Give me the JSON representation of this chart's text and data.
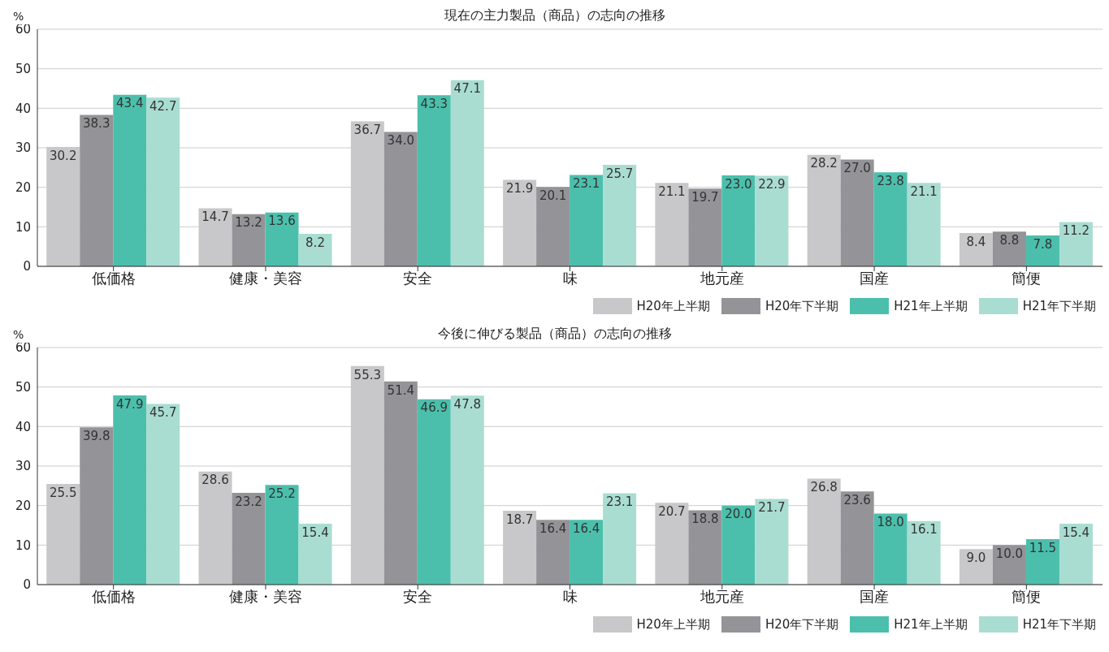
{
  "chart_data": [
    {
      "type": "bar",
      "title": "現在の主力製品（商品）の志向の推移",
      "ylabel": "%",
      "categories": [
        "低価格",
        "健康・美容",
        "安全",
        "味",
        "地元産",
        "国産",
        "簡便"
      ],
      "series": [
        {
          "name": "H20年上半期",
          "color": "#c8c8ca",
          "values": [
            30.2,
            14.7,
            36.7,
            21.9,
            21.1,
            28.2,
            8.4
          ],
          "value_labels": [
            "30.2",
            "14.7",
            "36.7",
            "21.9",
            "21.1",
            "28.2",
            "8.4"
          ]
        },
        {
          "name": "H20年下半期",
          "color": "#949498",
          "values": [
            38.3,
            13.2,
            34.0,
            20.1,
            19.7,
            27.0,
            8.8
          ],
          "value_labels": [
            "38.3",
            "13.2",
            "34.0",
            "20.1",
            "19.7",
            "27.0",
            "8.8"
          ]
        },
        {
          "name": "H21年上半期",
          "color": "#4bbfac",
          "values": [
            43.4,
            13.6,
            43.3,
            23.1,
            23.0,
            23.8,
            7.8
          ],
          "value_labels": [
            "43.4",
            "13.6",
            "43.3",
            "23.1",
            "23.0",
            "23.8",
            "7.8"
          ]
        },
        {
          "name": "H21年下半期",
          "color": "#a9ddd2",
          "values": [
            42.7,
            8.2,
            47.1,
            25.7,
            22.9,
            21.1,
            11.2
          ],
          "value_labels": [
            "42.7",
            "8.2",
            "47.1",
            "25.7",
            "22.9",
            "21.1",
            "11.2"
          ]
        }
      ],
      "ylim": [
        0,
        60
      ],
      "yticks": [
        0,
        10,
        20,
        30,
        40,
        50,
        60
      ],
      "grid": "y",
      "legend": "bottom right"
    },
    {
      "type": "bar",
      "title": "今後に伸びる製品（商品）の志向の推移",
      "ylabel": "%",
      "categories": [
        "低価格",
        "健康・美容",
        "安全",
        "味",
        "地元産",
        "国産",
        "簡便"
      ],
      "series": [
        {
          "name": "H20年上半期",
          "color": "#c8c8ca",
          "values": [
            25.5,
            28.6,
            55.3,
            18.7,
            20.7,
            26.8,
            9.0
          ],
          "value_labels": [
            "25.5",
            "28.6",
            "55.3",
            "18.7",
            "20.7",
            "26.8",
            "9.0"
          ]
        },
        {
          "name": "H20年下半期",
          "color": "#949498",
          "values": [
            39.8,
            23.2,
            51.4,
            16.4,
            18.8,
            23.6,
            10.0
          ],
          "value_labels": [
            "39.8",
            "23.2",
            "51.4",
            "16.4",
            "18.8",
            "23.6",
            "10.0"
          ]
        },
        {
          "name": "H21年上半期",
          "color": "#4bbfac",
          "values": [
            47.9,
            25.2,
            46.9,
            16.4,
            20.0,
            18.0,
            11.5
          ],
          "value_labels": [
            "47.9",
            "25.2",
            "46.9",
            "16.4",
            "20.0",
            "18.0",
            "11.5"
          ]
        },
        {
          "name": "H21年下半期",
          "color": "#a9ddd2",
          "values": [
            45.7,
            15.4,
            47.8,
            23.1,
            21.7,
            16.1,
            15.4
          ],
          "value_labels": [
            "45.7",
            "15.4",
            "47.8",
            "23.1",
            "21.7",
            "16.1",
            "15.4"
          ]
        }
      ],
      "ylim": [
        0,
        60
      ],
      "yticks": [
        0,
        10,
        20,
        30,
        40,
        50,
        60
      ],
      "grid": "y",
      "legend": "bottom right"
    }
  ]
}
